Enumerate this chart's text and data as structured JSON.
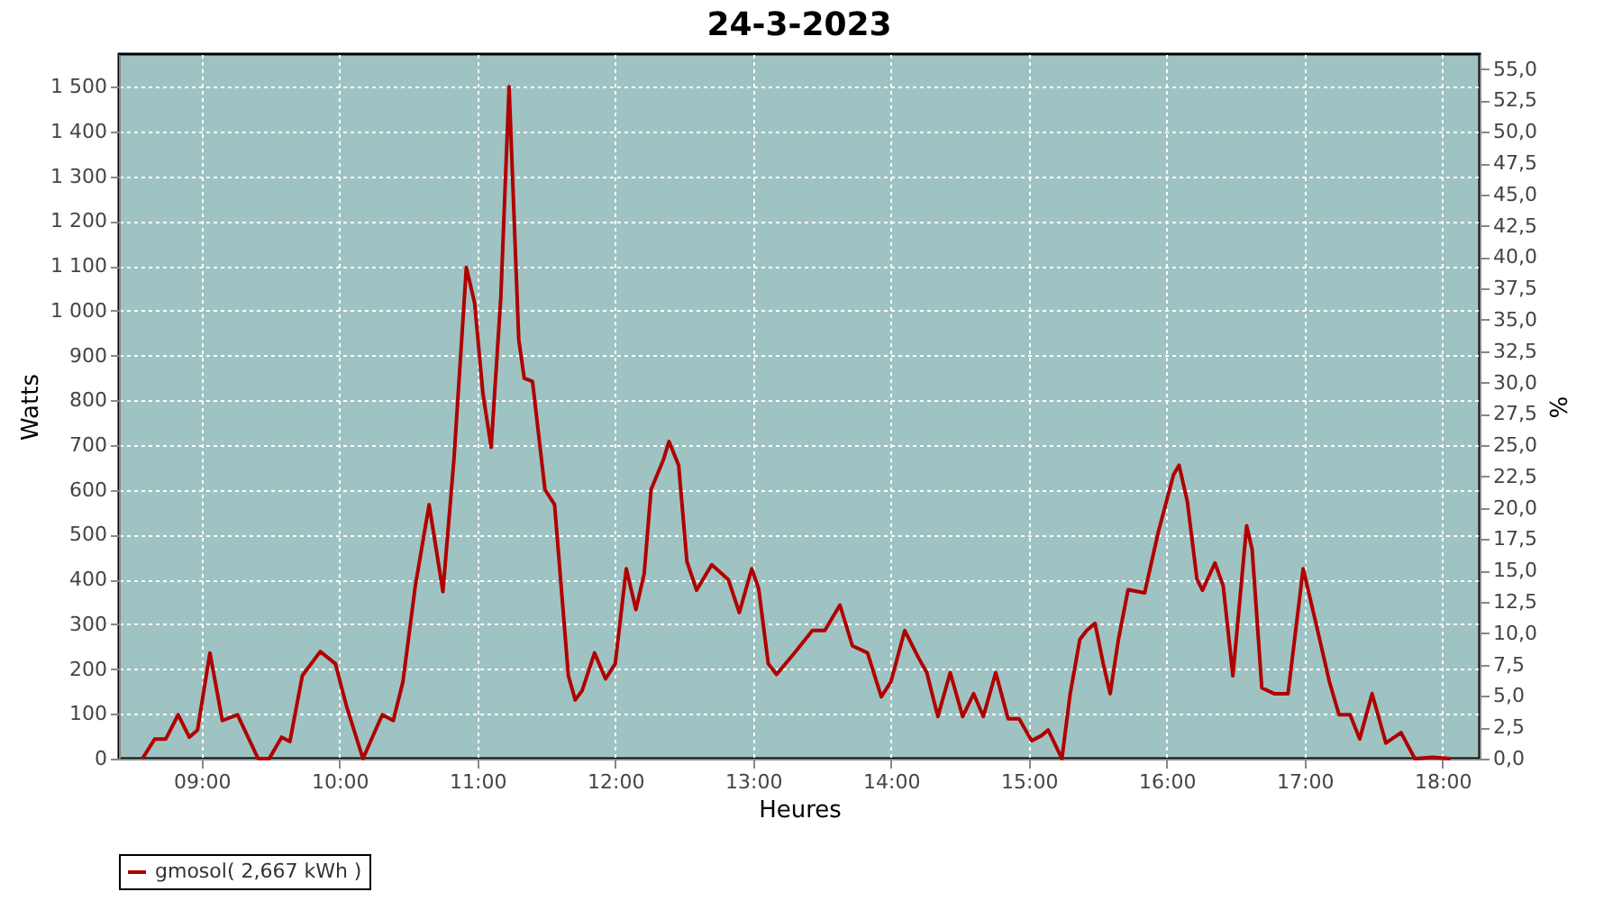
{
  "chart_data": {
    "type": "line",
    "title": "24-3-2023",
    "xlabel": "Heures",
    "ylabel": "Watts",
    "y2label": "%",
    "xlim": [
      8.4,
      18.27
    ],
    "xticks": [
      {
        "value": 9,
        "label": "09:00"
      },
      {
        "value": 10,
        "label": "10:00"
      },
      {
        "value": 11,
        "label": "11:00"
      },
      {
        "value": 12,
        "label": "12:00"
      },
      {
        "value": 13,
        "label": "13:00"
      },
      {
        "value": 14,
        "label": "14:00"
      },
      {
        "value": 15,
        "label": "15:00"
      },
      {
        "value": 16,
        "label": "16:00"
      },
      {
        "value": 17,
        "label": "17:00"
      },
      {
        "value": 18,
        "label": "18:00"
      }
    ],
    "ylim": [
      0,
      1573
    ],
    "yticks": [
      0,
      100,
      200,
      300,
      400,
      500,
      600,
      700,
      800,
      900,
      {
        "value": 1000,
        "label": "1 000"
      },
      {
        "value": 1100,
        "label": "1 100"
      },
      {
        "value": 1200,
        "label": "1 200"
      },
      {
        "value": 1300,
        "label": "1 300"
      },
      {
        "value": 1400,
        "label": "1 400"
      },
      {
        "value": 1500,
        "label": "1 500"
      }
    ],
    "y2lim": [
      0,
      56.2
    ],
    "y2ticks": [
      {
        "value": 0,
        "label": "0,0"
      },
      {
        "value": 2.5,
        "label": "2,5"
      },
      {
        "value": 5,
        "label": "5,0"
      },
      {
        "value": 7.5,
        "label": "7,5"
      },
      {
        "value": 10,
        "label": "10,0"
      },
      {
        "value": 12.5,
        "label": "12,5"
      },
      {
        "value": 15,
        "label": "15,0"
      },
      {
        "value": 17.5,
        "label": "17,5"
      },
      {
        "value": 20,
        "label": "20,0"
      },
      {
        "value": 22.5,
        "label": "22,5"
      },
      {
        "value": 25,
        "label": "25,0"
      },
      {
        "value": 27.5,
        "label": "27,5"
      },
      {
        "value": 30,
        "label": "30,0"
      },
      {
        "value": 32.5,
        "label": "32,5"
      },
      {
        "value": 35,
        "label": "35,0"
      },
      {
        "value": 37.5,
        "label": "37,5"
      },
      {
        "value": 40,
        "label": "40,0"
      },
      {
        "value": 42.5,
        "label": "42,5"
      },
      {
        "value": 45,
        "label": "45,0"
      },
      {
        "value": 47.5,
        "label": "47,5"
      },
      {
        "value": 50,
        "label": "50,0"
      },
      {
        "value": 52.5,
        "label": "52,5"
      },
      {
        "value": 55,
        "label": "55,0"
      }
    ],
    "grid": true,
    "legend": "bottom",
    "marker": "none",
    "line_style": "solid",
    "series": [
      {
        "name": "gmosol( 2,667 kWh )",
        "color": "#b00000",
        "x": [
          8.57,
          8.66,
          8.74,
          8.83,
          8.91,
          8.97,
          9.06,
          9.15,
          9.26,
          9.41,
          9.49,
          9.58,
          9.64,
          9.73,
          9.86,
          9.97,
          10.05,
          10.17,
          10.31,
          10.39,
          10.46,
          10.55,
          10.65,
          10.75,
          10.83,
          10.92,
          10.98,
          11.04,
          11.1,
          11.17,
          11.23,
          11.3,
          11.34,
          11.4,
          11.49,
          11.56,
          11.66,
          11.71,
          11.76,
          11.85,
          11.93,
          12.0,
          12.08,
          12.15,
          12.21,
          12.26,
          12.35,
          12.39,
          12.46,
          12.52,
          12.59,
          12.7,
          12.82,
          12.9,
          12.99,
          13.04,
          13.11,
          13.17,
          13.3,
          13.43,
          13.52,
          13.63,
          13.72,
          13.83,
          13.93,
          14.0,
          14.1,
          14.2,
          14.26,
          14.34,
          14.43,
          14.52,
          14.6,
          14.67,
          14.76,
          14.85,
          14.93,
          15.02,
          15.09,
          15.14,
          15.24,
          15.3,
          15.37,
          15.42,
          15.48,
          15.54,
          15.59,
          15.65,
          15.72,
          15.84,
          15.94,
          16.05,
          16.09,
          16.15,
          16.22,
          16.26,
          16.35,
          16.41,
          16.48,
          16.58,
          16.62,
          16.69,
          16.78,
          16.88,
          16.99,
          17.08,
          17.18,
          17.25,
          17.33,
          17.4,
          17.49,
          17.59,
          17.7,
          17.8,
          17.93,
          18.06
        ],
        "values": [
          0,
          44,
          44,
          98,
          48,
          64,
          236,
          85,
          98,
          0,
          0,
          48,
          38,
          185,
          239,
          212,
          118,
          0,
          98,
          85,
          172,
          386,
          567,
          373,
          668,
          1097,
          1017,
          816,
          695,
          1030,
          1500,
          936,
          849,
          842,
          601,
          567,
          185,
          131,
          152,
          236,
          178,
          212,
          424,
          333,
          413,
          601,
          668,
          708,
          655,
          440,
          376,
          433,
          400,
          326,
          424,
          380,
          212,
          188,
          236,
          286,
          286,
          343,
          252,
          236,
          138,
          172,
          286,
          225,
          192,
          94,
          192,
          94,
          145,
          94,
          192,
          89,
          89,
          40,
          51,
          64,
          0,
          145,
          266,
          286,
          302,
          212,
          145,
          266,
          377,
          370,
          507,
          634,
          655,
          574,
          400,
          376,
          437,
          386,
          185,
          520,
          467,
          158,
          145,
          145,
          424,
          306,
          172,
          98,
          98,
          44,
          145,
          35,
          58,
          0,
          3,
          0
        ]
      }
    ]
  }
}
